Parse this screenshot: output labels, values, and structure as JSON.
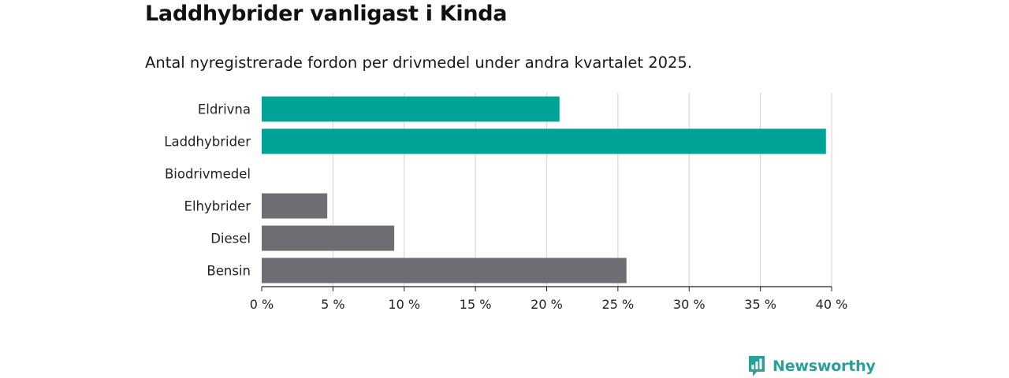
{
  "title": "Laddhybrider vanligast i Kinda",
  "subtitle": "Antal nyregistrerade fordon per drivmedel under andra kvartalet 2025.",
  "brand": {
    "name": "Newsworthy",
    "color": "#2aa198",
    "icon": "newsworthy-logo-icon"
  },
  "colors": {
    "highlight": "#00a396",
    "other": "#6e6d73",
    "grid": "#d9d9d9",
    "axis": "#222222"
  },
  "chart_data": {
    "type": "bar",
    "orientation": "horizontal",
    "categories": [
      "Eldrivna",
      "Laddhybrider",
      "Biodrivmedel",
      "Elhybrider",
      "Diesel",
      "Bensin"
    ],
    "values": [
      20.9,
      39.6,
      0,
      4.6,
      9.3,
      25.6
    ],
    "highlighted": [
      true,
      true,
      false,
      false,
      false,
      false
    ],
    "x_ticks": [
      "0 %",
      "5 %",
      "10 %",
      "15 %",
      "20 %",
      "25 %",
      "30 %",
      "35 %",
      "40 %"
    ],
    "xlim": [
      0,
      40
    ],
    "grid": true,
    "legend": "none"
  }
}
